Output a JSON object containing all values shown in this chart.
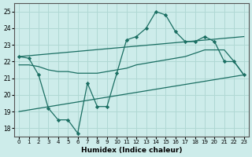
{
  "xlabel": "Humidex (Indice chaleur)",
  "ylabel": "",
  "bg_color": "#cdecea",
  "grid_color": "#b0d8d4",
  "line_color": "#1a6e62",
  "xlim": [
    -0.5,
    23.5
  ],
  "ylim": [
    17.5,
    25.5
  ],
  "yticks": [
    18,
    19,
    20,
    21,
    22,
    23,
    24,
    25
  ],
  "xticks": [
    0,
    1,
    2,
    3,
    4,
    5,
    6,
    7,
    8,
    9,
    10,
    11,
    12,
    13,
    14,
    15,
    16,
    17,
    18,
    19,
    20,
    21,
    22,
    23
  ],
  "series1_x": [
    0,
    1,
    2,
    3,
    4,
    5,
    6,
    7,
    8,
    9,
    10,
    11,
    12,
    13,
    14,
    15,
    16,
    17,
    18,
    19,
    20,
    21,
    22,
    23
  ],
  "series1_y": [
    22.3,
    22.2,
    21.2,
    19.2,
    18.5,
    18.5,
    17.7,
    20.7,
    19.3,
    19.3,
    21.3,
    23.3,
    23.5,
    24.0,
    25.0,
    24.8,
    23.8,
    23.2,
    23.2,
    23.5,
    23.2,
    22.0,
    22.0,
    21.2
  ],
  "series2_x": [
    0,
    23
  ],
  "series2_y": [
    22.3,
    23.5
  ],
  "series3_x": [
    0,
    1,
    2,
    3,
    4,
    5,
    6,
    7,
    8,
    9,
    10,
    11,
    12,
    13,
    14,
    15,
    16,
    17,
    18,
    19,
    20,
    21,
    22,
    23
  ],
  "series3_y": [
    21.8,
    21.8,
    21.7,
    21.5,
    21.4,
    21.4,
    21.3,
    21.3,
    21.3,
    21.4,
    21.5,
    21.6,
    21.8,
    21.9,
    22.0,
    22.1,
    22.2,
    22.3,
    22.5,
    22.7,
    22.7,
    22.7,
    22.0,
    21.2
  ],
  "series4_x": [
    0,
    23
  ],
  "series4_y": [
    19.0,
    21.2
  ]
}
